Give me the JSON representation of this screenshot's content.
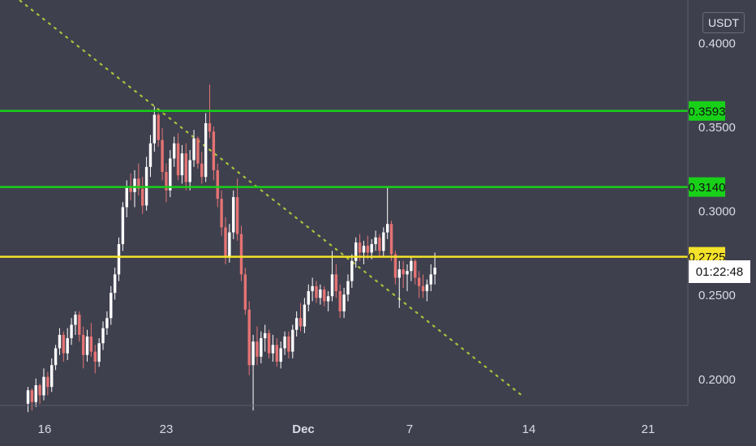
{
  "currency_button": "USDT",
  "countdown": "01:22:48",
  "colors": {
    "background": "#3f404e",
    "up": "#ffffff",
    "down": "#e57373",
    "line_green": "#19d019",
    "line_yellow": "#f5e22a",
    "trend_dotted": "#a9c23a",
    "axis_text": "#d9dbe3"
  },
  "chart_data": {
    "type": "candlestick",
    "price_axis": {
      "ticks": [
        "0.4000",
        "0.3500",
        "0.3000",
        "0.2500",
        "0.2000"
      ],
      "ylim": [
        0.183,
        0.421
      ]
    },
    "time_axis": {
      "ticks": [
        "16",
        "23",
        "Dec",
        "7",
        "14",
        "21"
      ],
      "bold": [
        "Dec"
      ]
    },
    "horizontal_levels": [
      {
        "label": "0.3593",
        "value": 0.3593,
        "color": "line_green"
      },
      {
        "label": "0.3140",
        "value": 0.314,
        "color": "line_green"
      },
      {
        "label": "0.2725",
        "value": 0.2725,
        "color": "line_yellow"
      }
    ],
    "trend_line": {
      "from": [
        -2,
        0.425
      ],
      "to": [
        125,
        0.19
      ],
      "style": "dotted"
    },
    "candles": [
      [
        0.185,
        0.195,
        0.18,
        0.193
      ],
      [
        0.193,
        0.194,
        0.181,
        0.186
      ],
      [
        0.186,
        0.2,
        0.183,
        0.196
      ],
      [
        0.196,
        0.197,
        0.185,
        0.19
      ],
      [
        0.19,
        0.206,
        0.187,
        0.201
      ],
      [
        0.201,
        0.204,
        0.19,
        0.195
      ],
      [
        0.195,
        0.212,
        0.192,
        0.208
      ],
      [
        0.208,
        0.22,
        0.205,
        0.218
      ],
      [
        0.218,
        0.23,
        0.214,
        0.226
      ],
      [
        0.226,
        0.228,
        0.21,
        0.215
      ],
      [
        0.215,
        0.23,
        0.211,
        0.224
      ],
      [
        0.224,
        0.236,
        0.22,
        0.232
      ],
      [
        0.232,
        0.24,
        0.226,
        0.238
      ],
      [
        0.238,
        0.24,
        0.222,
        0.226
      ],
      [
        0.226,
        0.231,
        0.206,
        0.214
      ],
      [
        0.214,
        0.229,
        0.21,
        0.225
      ],
      [
        0.225,
        0.233,
        0.213,
        0.216
      ],
      [
        0.216,
        0.22,
        0.203,
        0.21
      ],
      [
        0.21,
        0.224,
        0.207,
        0.221
      ],
      [
        0.221,
        0.234,
        0.217,
        0.23
      ],
      [
        0.23,
        0.24,
        0.226,
        0.236
      ],
      [
        0.236,
        0.255,
        0.232,
        0.251
      ],
      [
        0.251,
        0.266,
        0.247,
        0.262
      ],
      [
        0.262,
        0.284,
        0.258,
        0.28
      ],
      [
        0.28,
        0.305,
        0.276,
        0.302
      ],
      [
        0.302,
        0.318,
        0.296,
        0.314
      ],
      [
        0.314,
        0.322,
        0.306,
        0.311
      ],
      [
        0.311,
        0.324,
        0.302,
        0.319
      ],
      [
        0.319,
        0.328,
        0.309,
        0.313
      ],
      [
        0.313,
        0.32,
        0.298,
        0.303
      ],
      [
        0.303,
        0.332,
        0.3,
        0.326
      ],
      [
        0.326,
        0.345,
        0.32,
        0.34
      ],
      [
        0.34,
        0.362,
        0.335,
        0.357
      ],
      [
        0.357,
        0.358,
        0.338,
        0.342
      ],
      [
        0.342,
        0.349,
        0.318,
        0.323
      ],
      [
        0.323,
        0.328,
        0.305,
        0.312
      ],
      [
        0.312,
        0.336,
        0.308,
        0.331
      ],
      [
        0.331,
        0.344,
        0.326,
        0.34
      ],
      [
        0.34,
        0.346,
        0.318,
        0.321
      ],
      [
        0.321,
        0.339,
        0.316,
        0.334
      ],
      [
        0.334,
        0.34,
        0.312,
        0.317
      ],
      [
        0.317,
        0.336,
        0.312,
        0.33
      ],
      [
        0.33,
        0.348,
        0.326,
        0.343
      ],
      [
        0.343,
        0.344,
        0.325,
        0.328
      ],
      [
        0.328,
        0.335,
        0.316,
        0.32
      ],
      [
        0.32,
        0.358,
        0.317,
        0.352
      ],
      [
        0.352,
        0.375,
        0.343,
        0.347
      ],
      [
        0.347,
        0.35,
        0.318,
        0.324
      ],
      [
        0.324,
        0.328,
        0.302,
        0.307
      ],
      [
        0.307,
        0.312,
        0.285,
        0.29
      ],
      [
        0.29,
        0.296,
        0.268,
        0.272
      ],
      [
        0.272,
        0.292,
        0.269,
        0.287
      ],
      [
        0.287,
        0.312,
        0.283,
        0.308
      ],
      [
        0.308,
        0.319,
        0.282,
        0.286
      ],
      [
        0.286,
        0.291,
        0.258,
        0.262
      ],
      [
        0.262,
        0.266,
        0.238,
        0.241
      ],
      [
        0.241,
        0.246,
        0.202,
        0.208
      ],
      [
        0.208,
        0.226,
        0.181,
        0.222
      ],
      [
        0.222,
        0.231,
        0.208,
        0.213
      ],
      [
        0.213,
        0.228,
        0.209,
        0.224
      ],
      [
        0.224,
        0.232,
        0.216,
        0.227
      ],
      [
        0.227,
        0.229,
        0.212,
        0.215
      ],
      [
        0.215,
        0.226,
        0.21,
        0.22
      ],
      [
        0.22,
        0.224,
        0.207,
        0.21
      ],
      [
        0.21,
        0.222,
        0.206,
        0.218
      ],
      [
        0.218,
        0.228,
        0.214,
        0.225
      ],
      [
        0.225,
        0.228,
        0.212,
        0.216
      ],
      [
        0.216,
        0.232,
        0.212,
        0.229
      ],
      [
        0.229,
        0.24,
        0.225,
        0.236
      ],
      [
        0.236,
        0.245,
        0.228,
        0.231
      ],
      [
        0.231,
        0.248,
        0.227,
        0.244
      ],
      [
        0.244,
        0.256,
        0.24,
        0.252
      ],
      [
        0.252,
        0.26,
        0.246,
        0.255
      ],
      [
        0.255,
        0.258,
        0.245,
        0.248
      ],
      [
        0.248,
        0.256,
        0.244,
        0.253
      ],
      [
        0.253,
        0.255,
        0.243,
        0.246
      ],
      [
        0.246,
        0.252,
        0.24,
        0.249
      ],
      [
        0.249,
        0.276,
        0.246,
        0.262
      ],
      [
        0.262,
        0.268,
        0.248,
        0.252
      ],
      [
        0.252,
        0.256,
        0.236,
        0.24
      ],
      [
        0.24,
        0.254,
        0.236,
        0.25
      ],
      [
        0.25,
        0.262,
        0.246,
        0.258
      ],
      [
        0.258,
        0.274,
        0.254,
        0.27
      ],
      [
        0.27,
        0.284,
        0.266,
        0.281
      ],
      [
        0.281,
        0.286,
        0.27,
        0.275
      ],
      [
        0.275,
        0.282,
        0.268,
        0.279
      ],
      [
        0.279,
        0.285,
        0.271,
        0.275
      ],
      [
        0.275,
        0.283,
        0.271,
        0.28
      ],
      [
        0.28,
        0.288,
        0.276,
        0.284
      ],
      [
        0.284,
        0.286,
        0.272,
        0.276
      ],
      [
        0.276,
        0.29,
        0.273,
        0.287
      ],
      [
        0.287,
        0.314,
        0.283,
        0.292
      ],
      [
        0.292,
        0.294,
        0.27,
        0.274
      ],
      [
        0.274,
        0.276,
        0.256,
        0.26
      ],
      [
        0.26,
        0.27,
        0.242,
        0.265
      ],
      [
        0.265,
        0.27,
        0.254,
        0.262
      ],
      [
        0.262,
        0.268,
        0.252,
        0.264
      ],
      [
        0.264,
        0.272,
        0.258,
        0.27
      ],
      [
        0.27,
        0.271,
        0.256,
        0.26
      ],
      [
        0.26,
        0.264,
        0.248,
        0.255
      ],
      [
        0.255,
        0.262,
        0.248,
        0.252
      ],
      [
        0.252,
        0.259,
        0.246,
        0.256
      ],
      [
        0.256,
        0.268,
        0.252,
        0.262
      ],
      [
        0.262,
        0.275,
        0.256,
        0.266
      ]
    ]
  }
}
